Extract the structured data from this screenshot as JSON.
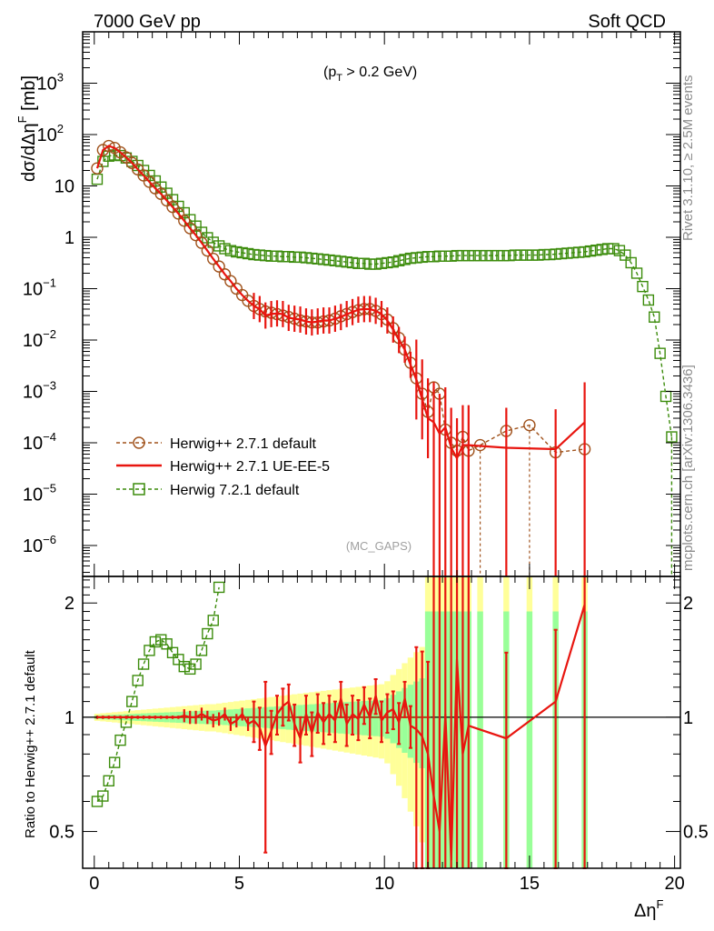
{
  "header": {
    "left": "7000 GeV pp",
    "right": "Soft QCD"
  },
  "side_labels": {
    "rivet": "Rivet 3.1.10, ≥ 2.5M events",
    "source": "mcplots.cern.ch [arXiv:1306.3436]"
  },
  "chart_data": {
    "type": "line",
    "cut_label": "(p_T > 0.2 GeV)",
    "analysis_tag": "(MC_GAPS)",
    "xlabel": "Δη^F",
    "ylabel_main": "dσ/dΔη^F [mb]",
    "ylabel_ratio": "Ratio to Herwig++ 2.7.1 default",
    "xlim": [
      -0.4,
      20.2
    ],
    "ylim_main": [
      2.5e-07,
      10000
    ],
    "ylim_ratio": [
      0.4,
      2.35
    ],
    "x_ticks": [
      0,
      5,
      10,
      15,
      20
    ],
    "x_tick_labels": [
      "0",
      "5",
      "10",
      "15",
      "20"
    ],
    "y_ticks_main": [
      {
        "base": "10",
        "exp": "3"
      },
      {
        "base": "10",
        "exp": "2"
      },
      {
        "base": "10",
        "exp": ""
      },
      {
        "base": "1",
        "exp": ""
      },
      {
        "base": "10",
        "exp": "−1"
      },
      {
        "base": "10",
        "exp": "−2"
      },
      {
        "base": "10",
        "exp": "−3"
      },
      {
        "base": "10",
        "exp": "−4"
      },
      {
        "base": "10",
        "exp": "−5"
      },
      {
        "base": "10",
        "exp": "−6"
      }
    ],
    "y_tick_values_main": [
      1000,
      100,
      10,
      1,
      0.1,
      0.01,
      0.001,
      0.0001,
      1e-05,
      1e-06
    ],
    "y_ticks_ratio": [
      "0.5",
      "1",
      "2"
    ],
    "y_tick_values_ratio": [
      0.5,
      1,
      2
    ],
    "legend": [
      {
        "name": "Herwig++ 2.7.1 default",
        "color": "#a0521c",
        "marker": "circle",
        "dashed": true
      },
      {
        "name": "Herwig++ 2.7.1 UE-EE-5",
        "color": "#e8150f",
        "marker": "none",
        "dashed": false
      },
      {
        "name": "Herwig 7.2.1 default",
        "color": "#3c8c0c",
        "marker": "square",
        "dashed": true
      }
    ],
    "series": [
      {
        "name": "Herwig++ 2.7.1 default",
        "x": [
          0.1,
          0.3,
          0.5,
          0.7,
          0.9,
          1.1,
          1.3,
          1.5,
          1.7,
          1.9,
          2.1,
          2.3,
          2.5,
          2.7,
          2.9,
          3.1,
          3.3,
          3.5,
          3.7,
          3.9,
          4.1,
          4.3,
          4.5,
          4.7,
          4.9,
          5.1,
          5.3,
          5.5,
          5.7,
          5.9,
          6.1,
          6.3,
          6.5,
          6.7,
          6.9,
          7.1,
          7.3,
          7.5,
          7.7,
          7.9,
          8.1,
          8.3,
          8.5,
          8.7,
          8.9,
          9.1,
          9.3,
          9.5,
          9.7,
          9.9,
          10.1,
          10.3,
          10.5,
          10.7,
          10.9,
          11.1,
          11.3,
          11.5,
          11.7,
          11.9,
          12.1,
          12.3,
          12.5,
          12.7,
          12.9,
          13.3,
          14.2,
          15.0,
          15.9,
          16.9
        ],
        "values": [
          22,
          50,
          60,
          55,
          45,
          36,
          28,
          21,
          16,
          12,
          9,
          7,
          5.2,
          3.9,
          2.9,
          2.1,
          1.5,
          1.1,
          0.78,
          0.55,
          0.38,
          0.27,
          0.19,
          0.14,
          0.1,
          0.075,
          0.058,
          0.046,
          0.04,
          0.036,
          0.034,
          0.032,
          0.03,
          0.028,
          0.026,
          0.024,
          0.023,
          0.022,
          0.022,
          0.023,
          0.024,
          0.026,
          0.029,
          0.032,
          0.035,
          0.038,
          0.04,
          0.04,
          0.037,
          0.032,
          0.025,
          0.017,
          0.011,
          0.0065,
          0.0036,
          0.0018,
          0.0009,
          0.0004,
          0.0012,
          0.0009,
          0.00018,
          0.0001,
          7e-05,
          0.00013,
          7e-05,
          9e-05,
          0.00017,
          0.00022,
          6.5e-05,
          7.5e-05
        ]
      },
      {
        "name": "Herwig++ 2.7.1 UE-EE-5",
        "x": [
          0.1,
          0.3,
          0.5,
          0.7,
          0.9,
          1.1,
          1.3,
          1.5,
          1.7,
          1.9,
          2.1,
          2.3,
          2.5,
          2.7,
          2.9,
          3.1,
          3.3,
          3.5,
          3.7,
          3.9,
          4.1,
          4.3,
          4.5,
          4.7,
          4.9,
          5.1,
          5.3,
          5.5,
          5.7,
          5.9,
          6.1,
          6.3,
          6.5,
          6.7,
          6.9,
          7.1,
          7.3,
          7.5,
          7.7,
          7.9,
          8.1,
          8.3,
          8.5,
          8.7,
          8.9,
          9.1,
          9.3,
          9.5,
          9.7,
          9.9,
          10.1,
          10.3,
          10.5,
          10.7,
          10.9,
          11.1,
          11.3,
          11.5,
          11.7,
          11.9,
          12.1,
          12.3,
          12.5,
          12.7,
          12.9,
          14.2,
          15.9,
          16.9
        ],
        "values": [
          22,
          50,
          60,
          55,
          45,
          36,
          28,
          21,
          16,
          12,
          9,
          7,
          5.2,
          3.9,
          2.9,
          2.1,
          1.5,
          1.1,
          0.78,
          0.55,
          0.38,
          0.27,
          0.19,
          0.14,
          0.1,
          0.075,
          0.058,
          0.046,
          0.04,
          0.03,
          0.032,
          0.033,
          0.032,
          0.027,
          0.026,
          0.025,
          0.023,
          0.022,
          0.023,
          0.024,
          0.024,
          0.026,
          0.028,
          0.032,
          0.035,
          0.039,
          0.04,
          0.04,
          0.037,
          0.032,
          0.024,
          0.016,
          0.01,
          0.0065,
          0.0033,
          0.0017,
          0.0007,
          0.0003,
          0.00025,
          0.00015,
          0.0002,
          8e-05,
          5e-05,
          9e-05,
          9e-05,
          8e-05,
          7.5e-05,
          0.00025
        ]
      },
      {
        "name": "Herwig 7.2.1 default",
        "x": [
          0.1,
          0.3,
          0.5,
          0.7,
          0.9,
          1.1,
          1.3,
          1.5,
          1.7,
          1.9,
          2.1,
          2.3,
          2.5,
          2.7,
          2.9,
          3.1,
          3.3,
          3.5,
          3.7,
          3.9,
          4.1,
          4.3,
          4.5,
          4.7,
          4.9,
          5.1,
          5.3,
          5.5,
          5.7,
          5.9,
          6.1,
          6.3,
          6.5,
          6.7,
          6.9,
          7.1,
          7.3,
          7.5,
          7.7,
          7.9,
          8.1,
          8.3,
          8.5,
          8.7,
          8.9,
          9.1,
          9.3,
          9.5,
          9.7,
          9.9,
          10.1,
          10.3,
          10.5,
          10.7,
          10.9,
          11.1,
          11.3,
          11.5,
          11.7,
          11.9,
          12.1,
          12.3,
          12.5,
          12.7,
          12.9,
          13.1,
          13.3,
          13.5,
          13.7,
          13.9,
          14.1,
          14.3,
          14.5,
          14.7,
          14.9,
          15.1,
          15.3,
          15.5,
          15.7,
          15.9,
          16.1,
          16.3,
          16.5,
          16.7,
          16.9,
          17.1,
          17.3,
          17.5,
          17.7,
          17.9,
          18.1,
          18.3,
          18.5,
          18.7,
          18.9,
          19.1,
          19.3,
          19.5,
          19.7,
          19.9
        ],
        "values": [
          13.5,
          30,
          38,
          40,
          39,
          35,
          30,
          25,
          20,
          16,
          12.5,
          9.5,
          7.2,
          5.4,
          4.0,
          3.0,
          2.2,
          1.65,
          1.25,
          0.98,
          0.8,
          0.68,
          0.6,
          0.55,
          0.52,
          0.5,
          0.48,
          0.46,
          0.45,
          0.44,
          0.43,
          0.43,
          0.42,
          0.42,
          0.41,
          0.41,
          0.4,
          0.39,
          0.38,
          0.37,
          0.36,
          0.35,
          0.34,
          0.33,
          0.32,
          0.31,
          0.31,
          0.3,
          0.3,
          0.31,
          0.32,
          0.33,
          0.35,
          0.37,
          0.39,
          0.4,
          0.41,
          0.42,
          0.42,
          0.43,
          0.43,
          0.43,
          0.44,
          0.44,
          0.44,
          0.44,
          0.44,
          0.44,
          0.44,
          0.44,
          0.44,
          0.44,
          0.45,
          0.45,
          0.45,
          0.45,
          0.45,
          0.46,
          0.46,
          0.47,
          0.48,
          0.49,
          0.5,
          0.51,
          0.52,
          0.54,
          0.56,
          0.58,
          0.6,
          0.6,
          0.55,
          0.45,
          0.32,
          0.2,
          0.11,
          0.06,
          0.028,
          0.0055,
          0.0008,
          0.00013
        ]
      }
    ],
    "ratio_series": [
      {
        "name": "Herwig++ 2.7.1 UE-EE-5 / default",
        "x": [
          0.1,
          0.3,
          0.5,
          0.7,
          0.9,
          1.1,
          1.3,
          1.5,
          1.7,
          1.9,
          2.1,
          2.3,
          2.5,
          2.7,
          2.9,
          3.1,
          3.3,
          3.5,
          3.7,
          3.9,
          4.1,
          4.3,
          4.5,
          4.7,
          4.9,
          5.1,
          5.3,
          5.5,
          5.7,
          5.9,
          6.1,
          6.3,
          6.5,
          6.7,
          6.9,
          7.1,
          7.3,
          7.5,
          7.7,
          7.9,
          8.1,
          8.3,
          8.5,
          8.7,
          8.9,
          9.1,
          9.3,
          9.5,
          9.7,
          9.9,
          10.1,
          10.3,
          10.5,
          10.7,
          10.9,
          11.1,
          11.3,
          11.5,
          11.7,
          11.9,
          12.1,
          12.3,
          12.5,
          12.7,
          12.9,
          14.2,
          15.9,
          16.9
        ],
        "values": [
          1.0,
          1.0,
          1.0,
          1.0,
          1.0,
          1.0,
          1.0,
          1.0,
          1.0,
          1.0,
          1.0,
          1.0,
          1.0,
          1.0,
          1.0,
          1.01,
          1.0,
          1.0,
          1.02,
          1.0,
          0.98,
          0.99,
          1.02,
          0.96,
          0.98,
          1.02,
          0.96,
          0.98,
          0.94,
          0.84,
          0.92,
          1.02,
          1.07,
          1.1,
          0.96,
          0.88,
          1.02,
          0.91,
          1.03,
          0.97,
          1.02,
          0.98,
          1.12,
          0.96,
          1.02,
          0.99,
          1.08,
          1.0,
          1.14,
          0.98,
          1.03,
          1.05,
          0.97,
          1.12,
          0.95,
          0.93,
          0.89,
          0.8,
          0.62,
          0.5,
          1.02,
          0.42,
          1.42,
          0.8,
          0.95,
          0.88,
          1.1,
          1.98
        ]
      },
      {
        "name": "Herwig 7.2.1 / default",
        "x": [
          0.1,
          0.3,
          0.5,
          0.7,
          0.9,
          1.1,
          1.3,
          1.5,
          1.7,
          1.9,
          2.1,
          2.3,
          2.5,
          2.7,
          2.9,
          3.1,
          3.3,
          3.5,
          3.7,
          3.9,
          4.1,
          4.3
        ],
        "values": [
          0.6,
          0.62,
          0.68,
          0.76,
          0.87,
          0.97,
          1.1,
          1.25,
          1.38,
          1.5,
          1.58,
          1.6,
          1.56,
          1.48,
          1.42,
          1.36,
          1.34,
          1.38,
          1.5,
          1.66,
          1.8,
          2.2
        ]
      }
    ]
  }
}
